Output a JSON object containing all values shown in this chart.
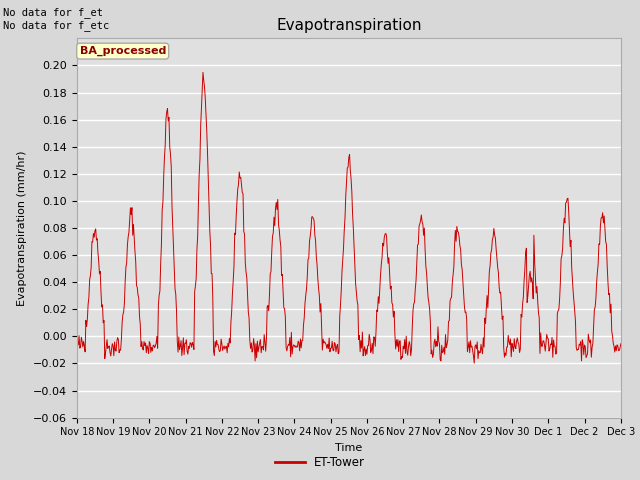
{
  "title": "Evapotranspiration",
  "ylabel": "Evapotranspiration (mm/hr)",
  "xlabel": "Time",
  "top_left_text": "No data for f_et\nNo data for f_etc",
  "legend_label": "ET-Tower",
  "legend_box_label": "BA_processed",
  "ylim": [
    -0.06,
    0.22
  ],
  "yticks": [
    -0.06,
    -0.04,
    -0.02,
    0.0,
    0.02,
    0.04,
    0.06,
    0.08,
    0.1,
    0.12,
    0.14,
    0.16,
    0.18,
    0.2
  ],
  "xtick_labels": [
    "Nov 18",
    "Nov 19",
    "Nov 20",
    "Nov 21",
    "Nov 22",
    "Nov 23",
    "Nov 24",
    "Nov 25",
    "Nov 26",
    "Nov 27",
    "Nov 28",
    "Nov 29",
    "Nov 30",
    "Dec 1",
    "Dec 2",
    "Dec 3"
  ],
  "line_color": "#cc0000",
  "background_color": "#d8d8d8",
  "plot_bg_color": "#e0e0e0",
  "grid_color": "#ffffff",
  "legend_box_color": "#ffffcc",
  "legend_box_edge": "#aaaaaa",
  "title_fontsize": 11,
  "axis_fontsize": 8,
  "tick_fontsize": 8
}
